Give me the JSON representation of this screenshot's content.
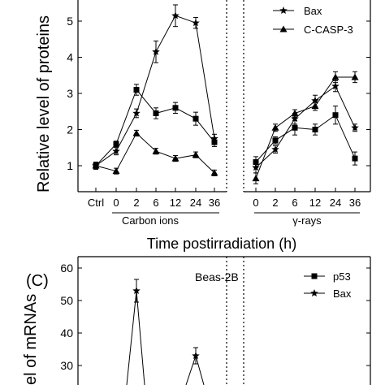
{
  "chart_data": [
    {
      "type": "line",
      "panel_label": "",
      "title": "",
      "ylabel": "Relative level of proteins",
      "xlabel": "Time postirradiation (h)",
      "ylim": [
        0.5,
        5.5
      ],
      "yticks": [
        1,
        2,
        3,
        4,
        5
      ],
      "ytick_labels": [
        "1",
        "2",
        "3",
        "4",
        "5"
      ],
      "cut_off_title_fragment": "",
      "groups": [
        {
          "label": "Carbon ions",
          "categories": [
            "Ctrl",
            "0",
            "2",
            "6",
            "12",
            "24",
            "36"
          ]
        },
        {
          "label": "γ-rays",
          "categories": [
            "0",
            "2",
            "6",
            "12",
            "24",
            "36"
          ]
        }
      ],
      "legend": [
        "Bax",
        "C-CASP-3"
      ],
      "series": [
        {
          "name": "",
          "marker": "square",
          "carbon": [
            1.0,
            1.6,
            3.1,
            2.45,
            2.6,
            2.3,
            1.65
          ],
          "carbon_err": [
            0.08,
            0.08,
            0.15,
            0.15,
            0.15,
            0.18,
            0.12
          ],
          "gamma": [
            1.1,
            1.7,
            2.05,
            2.0,
            2.4,
            1.2
          ],
          "gamma_err": [
            0.15,
            0.1,
            0.2,
            0.15,
            0.25,
            0.18
          ]
        },
        {
          "name": "Bax",
          "marker": "star",
          "carbon": [
            1.0,
            1.4,
            2.45,
            4.15,
            5.15,
            4.95,
            1.75
          ],
          "carbon_err": [
            0.1,
            0.1,
            0.12,
            0.3,
            0.3,
            0.15,
            0.12
          ],
          "gamma": [
            0.95,
            1.45,
            2.3,
            2.8,
            3.2,
            2.05
          ],
          "gamma_err": [
            0.15,
            0.1,
            0.15,
            0.15,
            0.15,
            0.1
          ]
        },
        {
          "name": "C-CASP-3",
          "marker": "triangle",
          "carbon": [
            1.0,
            0.85,
            1.9,
            1.4,
            1.2,
            1.3,
            0.8
          ],
          "carbon_err": [
            0.08,
            0.08,
            0.08,
            0.08,
            0.08,
            0.08,
            0.08
          ],
          "gamma": [
            0.65,
            2.05,
            2.45,
            2.65,
            3.45,
            3.45
          ],
          "gamma_err": [
            0.15,
            0.1,
            0.1,
            0.12,
            0.15,
            0.15
          ]
        }
      ]
    },
    {
      "type": "line",
      "panel_label": "(C)",
      "title": "Beas-2B",
      "ylabel": "el of mRNAs",
      "ylim": [
        20,
        62
      ],
      "yticks": [
        30,
        40,
        50,
        60
      ],
      "ytick_labels": [
        "30",
        "40",
        "50",
        "60"
      ],
      "legend": [
        "p53",
        "Bax"
      ],
      "series": [
        {
          "name": "p53",
          "marker": "square"
        },
        {
          "name": "Bax",
          "marker": "star",
          "visible_points": [
            {
              "x": "2",
              "y": 53,
              "err": 3.5
            },
            {
              "x": "12",
              "y": 33,
              "err": 2.5
            }
          ]
        }
      ]
    }
  ]
}
